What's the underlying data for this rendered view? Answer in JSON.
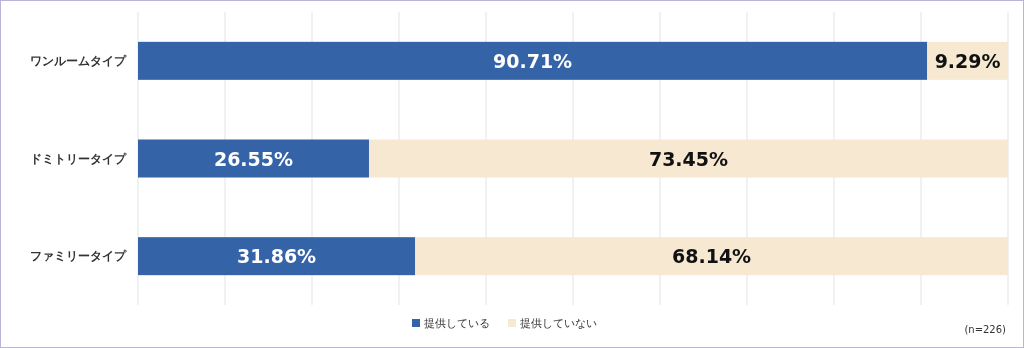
{
  "chart_data": {
    "type": "bar",
    "orientation": "horizontal",
    "stacked": true,
    "categories": [
      "ワンルームタイプ",
      "ドミトリータイプ",
      "ファミリータイプ"
    ],
    "series": [
      {
        "name": "提供している",
        "color": "#3463a8",
        "values": [
          90.71,
          26.55,
          31.86
        ],
        "value_labels": [
          "90.71%",
          "26.55%",
          "31.86%"
        ]
      },
      {
        "name": "提供していない",
        "color": "#f7e8d2",
        "values": [
          9.29,
          73.45,
          68.14
        ],
        "value_labels": [
          "9.29%",
          "73.45%",
          "68.14%"
        ]
      }
    ],
    "xlim": [
      0,
      100
    ],
    "xticks": [
      {
        "value": 0,
        "label": null
      },
      {
        "value": 10,
        "label": null
      },
      {
        "value": 20,
        "label": null
      },
      {
        "value": 30,
        "label": null
      },
      {
        "value": 40,
        "label": null
      },
      {
        "value": 50,
        "label": null
      },
      {
        "value": 60,
        "label": null
      },
      {
        "value": 70,
        "label": null
      },
      {
        "value": 80,
        "label": null
      },
      {
        "value": 90,
        "label": null
      },
      {
        "value": 100,
        "label": null
      }
    ],
    "grid": "x",
    "legend": "bottom",
    "tick_labels": "y",
    "annotations": [
      "(n=226)"
    ]
  }
}
